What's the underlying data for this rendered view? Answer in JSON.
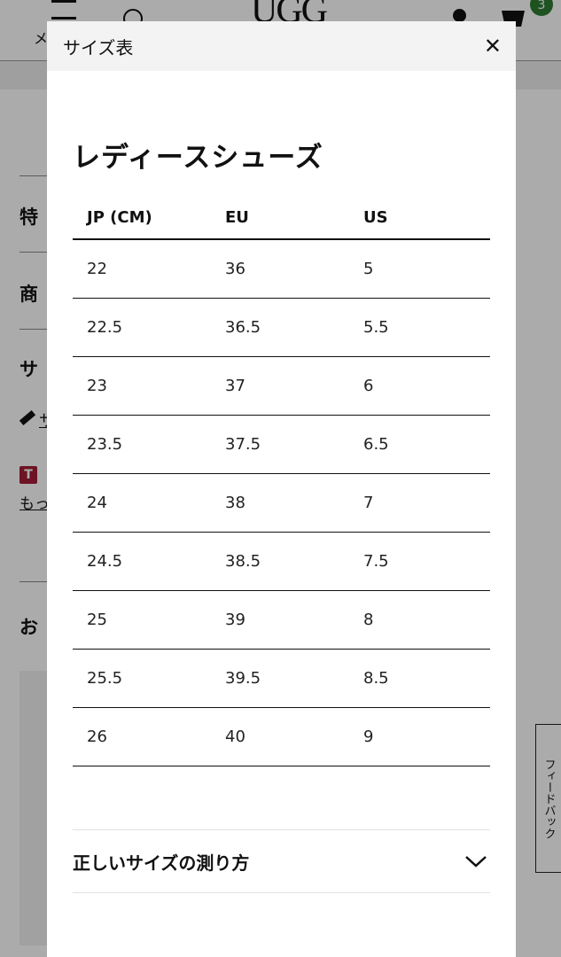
{
  "background_page": {
    "menu_label": "メ",
    "cart_count": "3",
    "logo": "UGG",
    "sections": [
      "特",
      "商",
      "サ",
      "お"
    ],
    "size_guide_link": "サ",
    "more_link": "もっ",
    "t_badge": "T",
    "feedback_label": "フィードバック",
    "colors": {
      "badge_green": "#2e7d32",
      "t_badge_red": "#a31d35"
    }
  },
  "modal": {
    "title": "サイズ表",
    "heading": "レディースシューズ",
    "columns": [
      "JP (CM)",
      "EU",
      "US"
    ],
    "rows": [
      [
        "22",
        "36",
        "5"
      ],
      [
        "22.5",
        "36.5",
        "5.5"
      ],
      [
        "23",
        "37",
        "6"
      ],
      [
        "23.5",
        "37.5",
        "6.5"
      ],
      [
        "24",
        "38",
        "7"
      ],
      [
        "24.5",
        "38.5",
        "7.5"
      ],
      [
        "25",
        "39",
        "8"
      ],
      [
        "25.5",
        "39.5",
        "8.5"
      ],
      [
        "26",
        "40",
        "9"
      ]
    ],
    "accordion_label": "正しいサイズの測り方",
    "close_icon": "close-icon",
    "accordion_icon": "chevron-down-icon"
  }
}
